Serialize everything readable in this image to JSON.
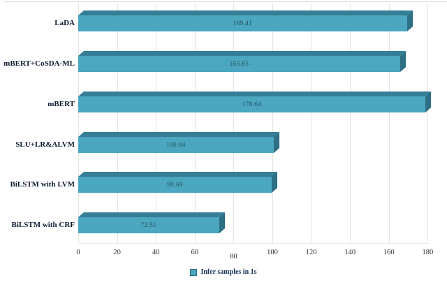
{
  "chart_data": {
    "type": "bar",
    "orientation": "horizontal",
    "style": "3d",
    "title": "",
    "categories": [
      "LaDA",
      "mBERT+CoSDA-ML",
      "mBERT",
      "SLU+LR&ALVM",
      "BiLSTM with LVM",
      "BiLSTM with CRF"
    ],
    "values": [
      169.41,
      165.65,
      178.64,
      100.84,
      99.69,
      72.51
    ],
    "value_labels": [
      "169.41",
      "165.65",
      "178.64",
      "100.84",
      "99.69",
      "72.51"
    ],
    "x_ticks": [
      "0",
      "20",
      "40",
      "60",
      "80",
      "100",
      "120",
      "140",
      "160",
      "180"
    ],
    "x_tick_values": [
      0,
      20,
      40,
      60,
      80,
      100,
      120,
      140,
      160,
      180
    ],
    "xlim": [
      0,
      182
    ],
    "grid": "vertical",
    "legend": {
      "label": "Infer samples in 1s",
      "position": "bottom"
    },
    "colors": {
      "bar_front": "#4ba6bf",
      "bar_top": "#357f96",
      "bar_side": "#2d6f85",
      "value_text": "#234d5e",
      "category_text": "#0d1b33",
      "tick_text": "#2f2f2f",
      "legend_text": "#17365d",
      "gridline": "#e4e4de"
    }
  }
}
